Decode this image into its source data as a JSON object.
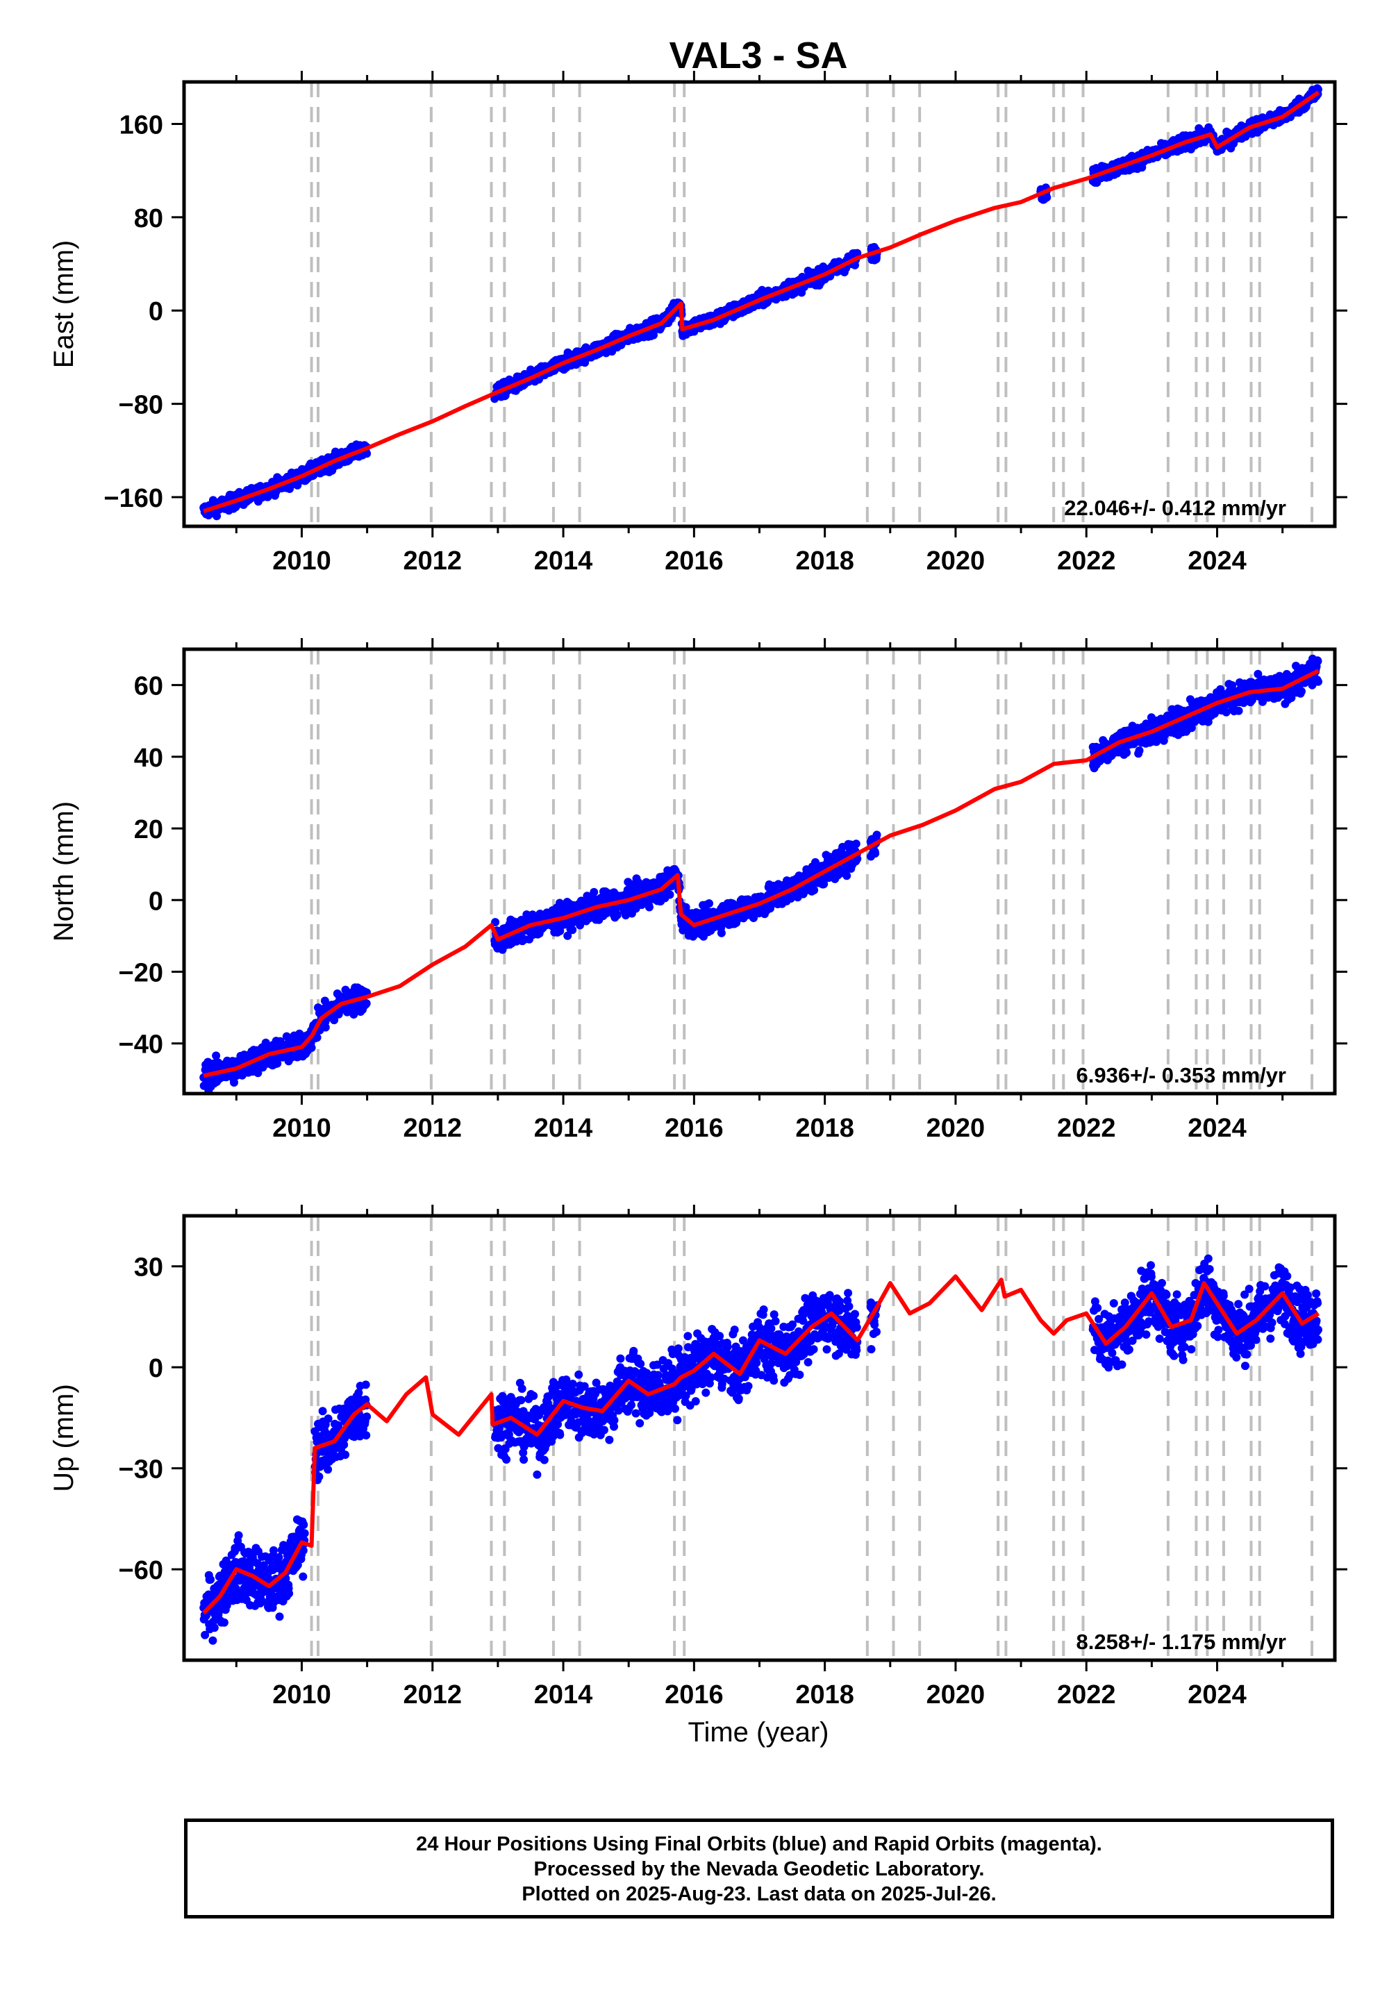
{
  "title": "VAL3 - SA",
  "xlabel": "Time (year)",
  "footer": {
    "line1": "24 Hour Positions Using Final Orbits (blue) and Rapid Orbits (magenta).",
    "line2": "Processed by the Nevada Geodetic Laboratory.",
    "line3": "Plotted on 2025-Aug-23. Last data on 2025-Jul-26."
  },
  "colors": {
    "observations": "#0000ff",
    "model": "#ff0000",
    "event_lines": "#bfbfbf",
    "frame": "#000000"
  },
  "chart_data": [
    {
      "type": "scatter",
      "component": "East",
      "ylabel": "East (mm)",
      "xlim": [
        2008.2,
        2025.8
      ],
      "ylim": [
        -185,
        196
      ],
      "xticks": [
        2010,
        2012,
        2014,
        2016,
        2018,
        2020,
        2022,
        2024
      ],
      "yticks": [
        -160,
        -80,
        0,
        80,
        160
      ],
      "rate_label": "22.046+/- 0.412 mm/yr",
      "data_segments": [
        [
          2008.5,
          2011.0
        ],
        [
          2012.95,
          2015.8
        ],
        [
          2015.8,
          2018.5
        ],
        [
          2018.7,
          2018.8
        ],
        [
          2021.3,
          2021.4
        ],
        [
          2022.1,
          2025.55
        ]
      ],
      "model_knots": [
        [
          2008.5,
          -172
        ],
        [
          2009.0,
          -163
        ],
        [
          2009.5,
          -153
        ],
        [
          2010.0,
          -142
        ],
        [
          2010.5,
          -129
        ],
        [
          2011.0,
          -118
        ],
        [
          2011.5,
          -106
        ],
        [
          2012.0,
          -95
        ],
        [
          2012.5,
          -82
        ],
        [
          2012.95,
          -71
        ],
        [
          2013.5,
          -58
        ],
        [
          2014.0,
          -45
        ],
        [
          2014.5,
          -34
        ],
        [
          2015.0,
          -22
        ],
        [
          2015.5,
          -11
        ],
        [
          2015.8,
          6
        ],
        [
          2015.82,
          -16
        ],
        [
          2016.3,
          -8
        ],
        [
          2017.0,
          9
        ],
        [
          2017.5,
          20
        ],
        [
          2018.0,
          31
        ],
        [
          2018.5,
          45
        ],
        [
          2019.0,
          54
        ],
        [
          2019.5,
          66
        ],
        [
          2020.0,
          77
        ],
        [
          2020.6,
          88
        ],
        [
          2021.0,
          93
        ],
        [
          2021.5,
          105
        ],
        [
          2022.0,
          113
        ],
        [
          2022.5,
          123
        ],
        [
          2023.0,
          133
        ],
        [
          2023.5,
          144
        ],
        [
          2023.9,
          151
        ],
        [
          2024.0,
          140
        ],
        [
          2024.5,
          157
        ],
        [
          2025.0,
          166
        ],
        [
          2025.55,
          187
        ]
      ],
      "scatter_spread_mm": 3
    },
    {
      "type": "scatter",
      "component": "North",
      "ylabel": "North (mm)",
      "xlim": [
        2008.2,
        2025.8
      ],
      "ylim": [
        -54,
        70
      ],
      "xticks": [
        2010,
        2012,
        2014,
        2016,
        2018,
        2020,
        2022,
        2024
      ],
      "yticks": [
        -40,
        -20,
        0,
        20,
        40,
        60
      ],
      "rate_label": "6.936+/- 0.353 mm/yr",
      "data_segments": [
        [
          2008.5,
          2011.0
        ],
        [
          2012.95,
          2015.8
        ],
        [
          2015.8,
          2018.5
        ],
        [
          2018.7,
          2018.8
        ],
        [
          2022.1,
          2025.55
        ]
      ],
      "model_knots": [
        [
          2008.5,
          -49
        ],
        [
          2009.0,
          -47
        ],
        [
          2009.5,
          -43
        ],
        [
          2010.0,
          -41
        ],
        [
          2010.15,
          -38
        ],
        [
          2010.3,
          -33
        ],
        [
          2010.6,
          -29
        ],
        [
          2011.0,
          -27
        ],
        [
          2011.5,
          -24
        ],
        [
          2012.0,
          -18
        ],
        [
          2012.5,
          -13
        ],
        [
          2012.9,
          -7
        ],
        [
          2013.0,
          -11
        ],
        [
          2013.5,
          -7
        ],
        [
          2014.0,
          -5
        ],
        [
          2014.5,
          -2
        ],
        [
          2015.0,
          0
        ],
        [
          2015.5,
          3
        ],
        [
          2015.75,
          7
        ],
        [
          2015.8,
          -4
        ],
        [
          2016.0,
          -7
        ],
        [
          2016.5,
          -4
        ],
        [
          2017.0,
          -1
        ],
        [
          2017.5,
          3
        ],
        [
          2018.0,
          8
        ],
        [
          2018.5,
          13
        ],
        [
          2019.0,
          18
        ],
        [
          2019.5,
          21
        ],
        [
          2020.0,
          25
        ],
        [
          2020.6,
          31
        ],
        [
          2021.0,
          33
        ],
        [
          2021.5,
          38
        ],
        [
          2022.0,
          39
        ],
        [
          2022.5,
          44
        ],
        [
          2023.0,
          47
        ],
        [
          2023.5,
          51
        ],
        [
          2024.0,
          55
        ],
        [
          2024.5,
          58
        ],
        [
          2025.0,
          59
        ],
        [
          2025.55,
          64
        ]
      ],
      "scatter_spread_mm": 1.8
    },
    {
      "type": "scatter",
      "component": "Up",
      "ylabel": "Up (mm)",
      "xlim": [
        2008.2,
        2025.8
      ],
      "ylim": [
        -87,
        45
      ],
      "xticks": [
        2010,
        2012,
        2014,
        2016,
        2018,
        2020,
        2022,
        2024
      ],
      "yticks": [
        -60,
        -30,
        0,
        30
      ],
      "rate_label": "8.258+/- 1.175 mm/yr",
      "data_segments": [
        [
          2008.5,
          2010.05
        ],
        [
          2010.2,
          2011.0
        ],
        [
          2012.95,
          2015.8
        ],
        [
          2015.8,
          2018.5
        ],
        [
          2018.7,
          2018.8
        ],
        [
          2022.1,
          2025.55
        ]
      ],
      "model_knots": [
        [
          2008.5,
          -73
        ],
        [
          2008.75,
          -68
        ],
        [
          2009.0,
          -60
        ],
        [
          2009.25,
          -62
        ],
        [
          2009.5,
          -65
        ],
        [
          2009.75,
          -61
        ],
        [
          2010.0,
          -52
        ],
        [
          2010.15,
          -53
        ],
        [
          2010.2,
          -24
        ],
        [
          2010.5,
          -22
        ],
        [
          2010.8,
          -14
        ],
        [
          2011.0,
          -11
        ],
        [
          2011.3,
          -16
        ],
        [
          2011.6,
          -8
        ],
        [
          2011.9,
          -3
        ],
        [
          2012.0,
          -14
        ],
        [
          2012.4,
          -20
        ],
        [
          2012.9,
          -8
        ],
        [
          2012.92,
          -17
        ],
        [
          2013.2,
          -15
        ],
        [
          2013.6,
          -20
        ],
        [
          2014.0,
          -10
        ],
        [
          2014.3,
          -12
        ],
        [
          2014.6,
          -13
        ],
        [
          2015.0,
          -4
        ],
        [
          2015.3,
          -8
        ],
        [
          2015.7,
          -5
        ],
        [
          2015.8,
          -3
        ],
        [
          2016.0,
          -1
        ],
        [
          2016.3,
          4
        ],
        [
          2016.7,
          -2
        ],
        [
          2017.0,
          8
        ],
        [
          2017.4,
          4
        ],
        [
          2017.8,
          12
        ],
        [
          2018.1,
          16
        ],
        [
          2018.5,
          8
        ],
        [
          2018.8,
          18
        ],
        [
          2019.0,
          25
        ],
        [
          2019.3,
          16
        ],
        [
          2019.6,
          19
        ],
        [
          2020.0,
          27
        ],
        [
          2020.4,
          17
        ],
        [
          2020.7,
          26
        ],
        [
          2020.75,
          21
        ],
        [
          2021.0,
          23
        ],
        [
          2021.3,
          14
        ],
        [
          2021.5,
          10
        ],
        [
          2021.7,
          14
        ],
        [
          2022.0,
          16
        ],
        [
          2022.3,
          7
        ],
        [
          2022.6,
          12
        ],
        [
          2023.0,
          22
        ],
        [
          2023.3,
          12
        ],
        [
          2023.6,
          14
        ],
        [
          2023.8,
          25
        ],
        [
          2024.0,
          19
        ],
        [
          2024.3,
          10
        ],
        [
          2024.6,
          14
        ],
        [
          2025.0,
          22
        ],
        [
          2025.3,
          13
        ],
        [
          2025.55,
          16
        ]
      ],
      "scatter_spread_mm": 4.5
    }
  ],
  "event_lines": [
    2010.15,
    2010.25,
    2011.98,
    2012.9,
    2013.1,
    2013.85,
    2014.25,
    2015.7,
    2015.85,
    2018.65,
    2019.05,
    2019.45,
    2020.65,
    2020.77,
    2021.5,
    2021.65,
    2021.95,
    2023.25,
    2023.68,
    2023.85,
    2024.1,
    2024.52,
    2024.65,
    2025.45
  ]
}
